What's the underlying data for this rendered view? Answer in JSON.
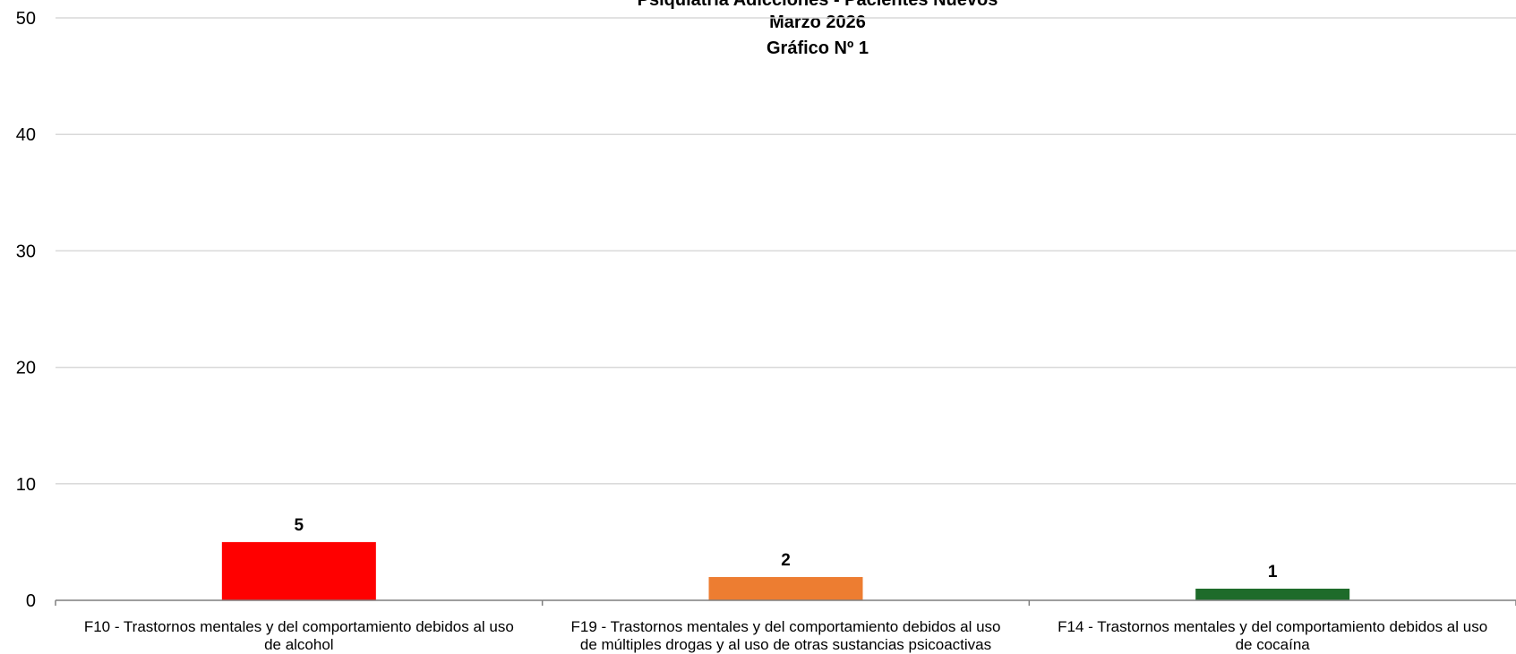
{
  "chart_data": {
    "type": "bar",
    "title_lines": [
      "Psiquiatría Adicciones - Pacientes Nuevos",
      "Marzo 2026",
      "Gráfico Nº 1"
    ],
    "categories": [
      [
        "F10  - Trastornos mentales y del comportamiento debidos al uso",
        "de alcohol"
      ],
      [
        "F19  - Trastornos mentales y del comportamiento debidos al uso",
        "de múltiples drogas y al uso de otras sustancias psicoactivas"
      ],
      [
        "F14  - Trastornos mentales y del comportamiento debidos al uso",
        "de cocaína"
      ]
    ],
    "values": [
      5,
      2,
      1
    ],
    "data_labels": [
      "5",
      "2",
      "1"
    ],
    "colors": [
      "#ff0000",
      "#ed7d31",
      "#1e6b2a"
    ],
    "ylim": [
      0,
      50
    ],
    "yticks": [
      "0",
      "10",
      "20",
      "30",
      "40",
      "50"
    ],
    "grid": true,
    "legend": "none",
    "xlabel": "",
    "ylabel": ""
  }
}
